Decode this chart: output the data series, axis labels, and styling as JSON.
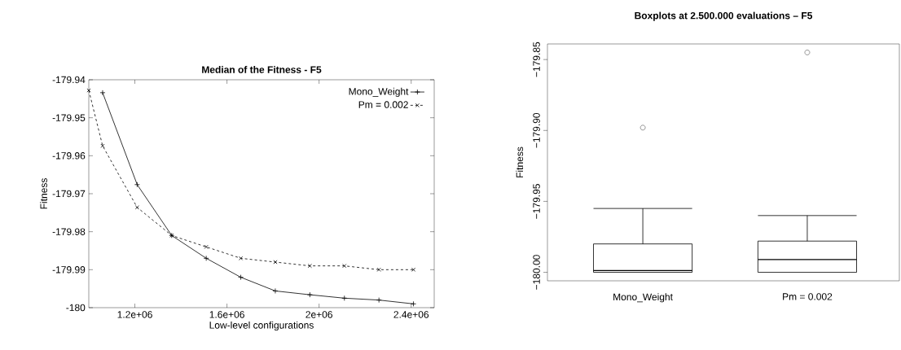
{
  "chart_data": [
    {
      "type": "line",
      "title": "Median of the Fitness - F5",
      "xlabel": "Low-level configurations",
      "ylabel": "Fitness",
      "xlim": [
        1000000,
        2500000
      ],
      "ylim": [
        -180,
        -179.94
      ],
      "xticks": [
        {
          "value": 1200000,
          "label": "1.2e+06"
        },
        {
          "value": 1600000,
          "label": "1.6e+06"
        },
        {
          "value": 2000000,
          "label": "2e+06"
        },
        {
          "value": 2400000,
          "label": "2.4e+06"
        }
      ],
      "yticks": [
        {
          "value": -180,
          "label": "-180"
        },
        {
          "value": -179.99,
          "label": "-179.99"
        },
        {
          "value": -179.98,
          "label": "-179.98"
        },
        {
          "value": -179.97,
          "label": "-179.97"
        },
        {
          "value": -179.96,
          "label": "-179.96"
        },
        {
          "value": -179.95,
          "label": "-179.95"
        },
        {
          "value": -179.94,
          "label": "-179.94"
        }
      ],
      "legend": "top right",
      "grid": false,
      "series": [
        {
          "name": "Mono_Weight",
          "color": "#000000",
          "marker": "plus",
          "line_style": "solid",
          "x": [
            1060000,
            1210000,
            1360000,
            1510000,
            1660000,
            1810000,
            1960000,
            2110000,
            2260000,
            2410000
          ],
          "values": [
            -179.9434,
            -179.9676,
            -179.981,
            -179.987,
            -179.992,
            -179.9956,
            -179.9966,
            -179.9975,
            -179.998,
            -179.999
          ]
        },
        {
          "name": "Pm = 0.002",
          "color": "#000000",
          "marker": "cross",
          "line_style": "dashed",
          "x": [
            1000000,
            1060000,
            1210000,
            1360000,
            1510000,
            1660000,
            1810000,
            1960000,
            2110000,
            2260000,
            2410000
          ],
          "values": [
            -179.9428,
            -179.9574,
            -179.9736,
            -179.981,
            -179.984,
            -179.987,
            -179.988,
            -179.989,
            -179.989,
            -179.99,
            -179.99
          ]
        }
      ]
    },
    {
      "type": "box",
      "title": "Boxplots at 2.500.000 evaluations – F5",
      "ylabel": "Fitness",
      "categories": [
        "Mono_Weight",
        "Pm = 0.002"
      ],
      "ylim": [
        -180.006,
        -179.839
      ],
      "yticks": [
        {
          "value": -180,
          "label": "−180.00"
        },
        {
          "value": -179.95,
          "label": "−179.95"
        },
        {
          "value": -179.9,
          "label": "−179.90"
        },
        {
          "value": -179.85,
          "label": "−179.85"
        }
      ],
      "grid": false,
      "color": "#000000",
      "boxes": [
        {
          "low": -180.0,
          "q1": -180.0,
          "median": -179.9988,
          "q3": -179.98,
          "high": -179.955,
          "outliers": [
            -179.898
          ]
        },
        {
          "low": -180.0,
          "q1": -180.0,
          "median": -179.991,
          "q3": -179.978,
          "high": -179.96,
          "outliers": [
            -179.845
          ]
        }
      ]
    }
  ]
}
